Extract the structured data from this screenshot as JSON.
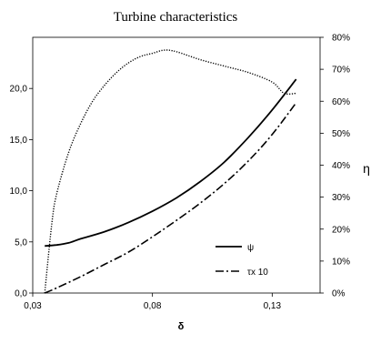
{
  "chart_data": {
    "type": "line",
    "title": "Turbine characteristics",
    "xlabel": "δ",
    "ylabel": "",
    "y2label": "η",
    "xlim": [
      0.03,
      0.15
    ],
    "ylim": [
      0,
      25
    ],
    "y2lim": [
      0,
      0.8
    ],
    "xticks": [
      "0,03",
      "0,08",
      "0,13"
    ],
    "xtick_values": [
      0.03,
      0.08,
      0.13
    ],
    "yticks": [
      "0,0",
      "5,0",
      "10,0",
      "15,0",
      "20,0"
    ],
    "ytick_values": [
      0,
      5,
      10,
      15,
      20
    ],
    "y2ticks": [
      "0%",
      "10%",
      "20%",
      "30%",
      "40%",
      "50%",
      "60%",
      "70%",
      "80%"
    ],
    "y2tick_values": [
      0,
      0.1,
      0.2,
      0.3,
      0.4,
      0.5,
      0.6,
      0.7,
      0.8
    ],
    "grid": false,
    "legend_position": "bottom-right",
    "series": [
      {
        "name": "ψ",
        "axis": "left",
        "style": "solid",
        "x": [
          0.035,
          0.04,
          0.045,
          0.05,
          0.06,
          0.07,
          0.08,
          0.09,
          0.1,
          0.11,
          0.12,
          0.13,
          0.14
        ],
        "y": [
          4.6,
          4.7,
          4.9,
          5.3,
          6.0,
          6.9,
          8.0,
          9.3,
          10.9,
          12.8,
          15.2,
          17.9,
          20.9
        ]
      },
      {
        "name": "τx 10",
        "axis": "left",
        "style": "dashdot",
        "x": [
          0.035,
          0.04,
          0.05,
          0.06,
          0.07,
          0.08,
          0.09,
          0.1,
          0.11,
          0.12,
          0.13,
          0.14
        ],
        "y": [
          0.0,
          0.5,
          1.6,
          2.8,
          4.0,
          5.5,
          7.1,
          8.8,
          10.7,
          12.9,
          15.5,
          18.6
        ]
      },
      {
        "name": "",
        "axis": "right",
        "style": "dotted",
        "x": [
          0.035,
          0.038,
          0.04,
          0.045,
          0.05,
          0.055,
          0.06,
          0.065,
          0.07,
          0.075,
          0.08,
          0.085,
          0.09,
          0.1,
          0.11,
          0.12,
          0.13,
          0.135,
          0.14
        ],
        "y": [
          0.0,
          0.22,
          0.31,
          0.44,
          0.53,
          0.6,
          0.65,
          0.69,
          0.72,
          0.74,
          0.75,
          0.76,
          0.755,
          0.73,
          0.71,
          0.69,
          0.66,
          0.625,
          0.625
        ]
      }
    ]
  }
}
